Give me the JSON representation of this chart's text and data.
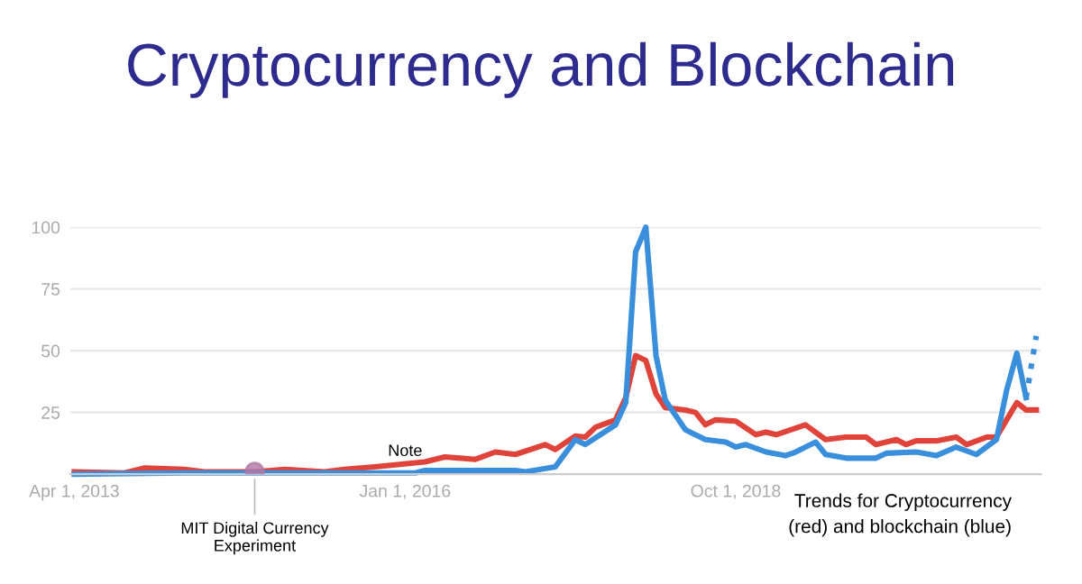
{
  "chart_data": {
    "type": "line",
    "title": "Cryptocurrency and Blockchain",
    "xlim": [
      "2013-03-20",
      "2021-04-15"
    ],
    "ylim": [
      0,
      100
    ],
    "xticks": [
      {
        "value": "2013-04-01",
        "label": "Apr 1, 2013"
      },
      {
        "value": "2016-01-01",
        "label": "Jan 1, 2016"
      },
      {
        "value": "2018-10-01",
        "label": "Oct 1, 2018"
      }
    ],
    "yticks": [
      25,
      50,
      75,
      100
    ],
    "grid": "y",
    "legend": false,
    "marker": "none",
    "annotations": [
      {
        "text": "MIT Digital Currency\nExperiment",
        "x": "2014-10",
        "y": 1
      },
      {
        "text": "Note",
        "x": "2016-01",
        "y": 3
      },
      "Trends for Cryptocurrency\n(red) and blockchain (blue)"
    ],
    "series": [
      {
        "color": "#e0433a",
        "line_style": "solid",
        "x": [
          "2013-04",
          "2013-09",
          "2013-11",
          "2014-03",
          "2014-05",
          "2014-10",
          "2015-01",
          "2015-05",
          "2015-07",
          "2015-10",
          "2016-03",
          "2016-05",
          "2016-08",
          "2016-10",
          "2016-12",
          "2017-03",
          "2017-04",
          "2017-06",
          "2017-07",
          "2017-08",
          "2017-10",
          "2017-11",
          "2017-12",
          "2018-01",
          "2018-02",
          "2018-03",
          "2018-05",
          "2018-06",
          "2018-07",
          "2018-08",
          "2018-10",
          "2018-12",
          "2019-01",
          "2019-02",
          "2019-05",
          "2019-07",
          "2019-09",
          "2019-11",
          "2019-12",
          "2020-02",
          "2020-03",
          "2020-04",
          "2020-06",
          "2020-08",
          "2020-09",
          "2020-11",
          "2020-12",
          "2021-01",
          "2021-02",
          "2021-03",
          "2021-04"
        ],
        "values": [
          1,
          0.5,
          2.5,
          2,
          1,
          1,
          2,
          1,
          2,
          3,
          5,
          7,
          6,
          9,
          8,
          12,
          10,
          15.5,
          15,
          19,
          22,
          31,
          48,
          46,
          32.5,
          27,
          26,
          25,
          20,
          22,
          21.5,
          16,
          17,
          16,
          20,
          14,
          15,
          15,
          12,
          14,
          12,
          13.5,
          13.5,
          15,
          12,
          15,
          15,
          22,
          29,
          26,
          26
        ]
      },
      {
        "color": "#3a8fdc",
        "line_style": "solid",
        "x": [
          "2013-04",
          "2014-03",
          "2014-12",
          "2016-02",
          "2016-03",
          "2016-12",
          "2017-01",
          "2017-04",
          "2017-06",
          "2017-07",
          "2017-10",
          "2017-11",
          "2017-12",
          "2018-01",
          "2018-02",
          "2018-03",
          "2018-05",
          "2018-07",
          "2018-09",
          "2018-10",
          "2018-11",
          "2019-01",
          "2019-03",
          "2019-04",
          "2019-06",
          "2019-07",
          "2019-09",
          "2019-12",
          "2020-01",
          "2020-04",
          "2020-06",
          "2020-08",
          "2020-10",
          "2020-12",
          "2021-01",
          "2021-02",
          "2021-03"
        ],
        "values": [
          0,
          0.5,
          0.5,
          0.5,
          1.5,
          1.5,
          1,
          3,
          14,
          12,
          20,
          29,
          90,
          100,
          48,
          30,
          18,
          14,
          13,
          11,
          12,
          9,
          7.5,
          9,
          13,
          8,
          6.5,
          6.5,
          8.5,
          9,
          7.5,
          11,
          8,
          14,
          34,
          49,
          31
        ]
      },
      {
        "color": "#3a8fdc",
        "line_style": "dotted",
        "x": [
          "2021-03",
          "2021-04"
        ],
        "values": [
          31,
          56
        ]
      }
    ]
  }
}
